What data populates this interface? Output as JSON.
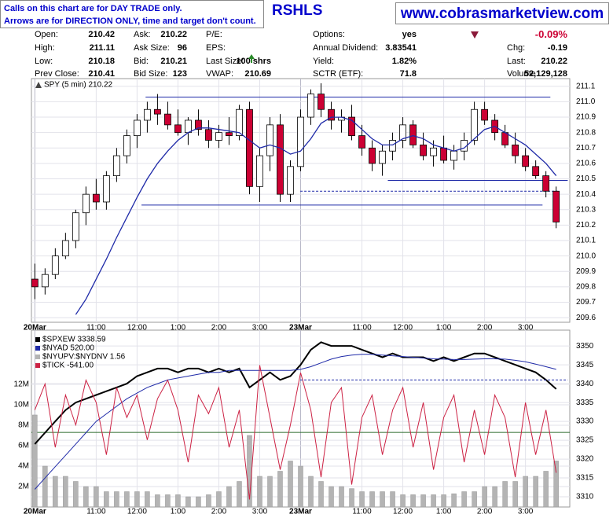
{
  "header": {
    "notes": [
      "Calls on this chart are for DAY TRADE only.",
      "Arrows are for DIRECTION ONLY, time and target don't count."
    ],
    "symbol": "RSHLS",
    "site": "www.cobrasmarketview.com",
    "quote": [
      [
        {
          "label": "Open:",
          "value": "210.42"
        },
        {
          "label": "Ask:",
          "value": "210.22"
        },
        {
          "label": "P/E:"
        },
        {
          "label": "Options:",
          "value": "yes"
        },
        {
          "value": "-0.09%"
        }
      ],
      [
        {
          "label": "High:",
          "value": "211.11"
        },
        {
          "label": "Ask Size:",
          "value": "96"
        },
        {
          "label": "EPS:"
        },
        {
          "label": "Annual Dividend:",
          "value": "3.83541"
        },
        {
          "label": "Chg:",
          "value": "-0.19"
        }
      ],
      [
        {
          "label": "Low:",
          "value": "210.18"
        },
        {
          "label": "Bid:",
          "value": "210.21"
        },
        {
          "label": "Last Size:",
          "value": "100 shrs"
        },
        {
          "label": "Yield:",
          "value": "1.82%"
        },
        {
          "label": "Last:",
          "value": "210.22"
        }
      ],
      [
        {
          "label": "Prev Close:",
          "value": "210.41"
        },
        {
          "label": "Bid Size:",
          "value": "123"
        },
        {
          "label": "VWAP:",
          "value": "210.69"
        },
        {
          "label": "SCTR (ETF):",
          "value": "71.8"
        },
        {
          "label": "Volume:",
          "value": "52,129,128"
        }
      ]
    ]
  },
  "chart_data": [
    {
      "type": "candlestick",
      "title": "SPY (5 min) 210.22",
      "xlim": [
        -1,
        157
      ],
      "ylim": [
        209.57,
        211.15
      ],
      "grid": true,
      "up_color": "#ffffff",
      "down_color": "#cc0033",
      "xticks": [
        {
          "value": 0,
          "label": "20Mar"
        },
        {
          "value": 18,
          "label": "11:00"
        },
        {
          "value": 30,
          "label": "12:00"
        },
        {
          "value": 42,
          "label": "1:00"
        },
        {
          "value": 54,
          "label": "2:00"
        },
        {
          "value": 66,
          "label": "3:00"
        },
        {
          "value": 78,
          "label": "23Mar"
        },
        {
          "value": 96,
          "label": "11:00"
        },
        {
          "value": 108,
          "label": "12:00"
        },
        {
          "value": 120,
          "label": "1:00"
        },
        {
          "value": 132,
          "label": "2:00"
        },
        {
          "value": 144,
          "label": "3:00"
        }
      ],
      "yticks": [
        209.6,
        209.7,
        209.8,
        209.9,
        {
          "value": 210,
          "label": "210.0"
        },
        210.1,
        210.2,
        210.3,
        210.4,
        210.5,
        210.6,
        210.7,
        210.8,
        210.9,
        {
          "value": 211,
          "label": "211.0"
        },
        211.1
      ],
      "x": [
        0,
        3,
        6,
        9,
        12,
        15,
        18,
        21,
        24,
        27,
        30,
        33,
        36,
        39,
        42,
        45,
        48,
        51,
        54,
        57,
        60,
        63,
        66,
        69,
        72,
        75,
        78,
        81,
        84,
        87,
        90,
        93,
        96,
        99,
        102,
        105,
        108,
        111,
        114,
        117,
        120,
        123,
        126,
        129,
        132,
        135,
        138,
        141,
        144,
        147,
        150,
        153
      ],
      "open": [
        209.85,
        209.8,
        209.88,
        210.0,
        210.1,
        210.28,
        210.4,
        210.35,
        210.52,
        210.65,
        210.78,
        210.88,
        210.95,
        210.92,
        210.85,
        210.8,
        210.88,
        210.82,
        210.75,
        210.8,
        210.78,
        210.95,
        210.45,
        210.65,
        210.85,
        210.4,
        210.58,
        210.9,
        211.05,
        210.95,
        210.88,
        210.9,
        210.78,
        210.7,
        210.6,
        210.68,
        210.75,
        210.85,
        210.72,
        210.65,
        210.7,
        210.62,
        210.68,
        210.75,
        210.95,
        210.88,
        210.8,
        210.72,
        210.65,
        210.58,
        210.52,
        210.42
      ],
      "high": [
        209.95,
        209.92,
        210.05,
        210.15,
        210.3,
        210.45,
        210.5,
        210.55,
        210.7,
        210.82,
        210.92,
        211.0,
        211.05,
        211.0,
        210.95,
        210.9,
        210.95,
        210.88,
        210.85,
        210.9,
        210.98,
        211.0,
        210.7,
        210.9,
        210.92,
        210.62,
        210.95,
        211.08,
        211.12,
        211.0,
        210.95,
        210.98,
        210.85,
        210.75,
        210.72,
        210.8,
        210.9,
        210.88,
        210.8,
        210.75,
        210.78,
        210.72,
        210.8,
        211.0,
        211.0,
        210.92,
        210.85,
        210.8,
        210.7,
        210.62,
        210.55,
        210.45
      ],
      "low": [
        209.72,
        209.75,
        209.85,
        209.98,
        210.05,
        210.2,
        210.3,
        210.3,
        210.48,
        210.6,
        210.7,
        210.8,
        210.85,
        210.82,
        210.78,
        210.72,
        210.78,
        210.7,
        210.7,
        210.72,
        210.75,
        210.4,
        210.35,
        210.55,
        210.35,
        210.35,
        210.55,
        210.85,
        210.9,
        210.82,
        210.8,
        210.75,
        210.65,
        210.55,
        210.52,
        210.62,
        210.7,
        210.7,
        210.62,
        210.58,
        210.6,
        210.56,
        210.62,
        210.72,
        210.85,
        210.75,
        210.7,
        210.6,
        210.55,
        210.5,
        210.38,
        210.18
      ],
      "close": [
        209.8,
        209.88,
        210.0,
        210.1,
        210.28,
        210.4,
        210.35,
        210.52,
        210.65,
        210.78,
        210.88,
        210.95,
        210.92,
        210.85,
        210.8,
        210.88,
        210.82,
        210.75,
        210.8,
        210.78,
        210.95,
        210.45,
        210.65,
        210.85,
        210.4,
        210.58,
        210.9,
        211.05,
        210.95,
        210.88,
        210.9,
        210.78,
        210.7,
        210.6,
        210.68,
        210.75,
        210.85,
        210.72,
        210.65,
        210.7,
        210.62,
        210.68,
        210.75,
        210.95,
        210.88,
        210.8,
        210.72,
        210.65,
        210.58,
        210.52,
        210.42,
        210.22
      ],
      "ma": {
        "color": "#1f2aa8",
        "values": [
          null,
          null,
          null,
          null,
          209.62,
          209.72,
          209.85,
          209.98,
          210.12,
          210.25,
          210.38,
          210.5,
          210.6,
          210.68,
          210.75,
          210.8,
          210.83,
          210.83,
          210.82,
          210.81,
          210.8,
          210.75,
          210.7,
          210.72,
          210.7,
          210.66,
          210.68,
          210.76,
          210.86,
          210.9,
          210.9,
          210.88,
          210.82,
          210.76,
          210.72,
          210.72,
          210.76,
          210.78,
          210.76,
          210.72,
          210.7,
          210.68,
          210.7,
          210.76,
          210.82,
          210.84,
          210.8,
          210.76,
          210.72,
          210.66,
          210.6,
          210.52
        ]
      },
      "levels": [
        {
          "y": 211.03,
          "x": [
            32.5,
            151.3
          ],
          "dashed": false,
          "color": "#1f2aa8"
        },
        {
          "y": 210.49,
          "x": [
            103.6,
            156.4
          ],
          "dashed": false,
          "color": "#1f2aa8"
        },
        {
          "y": 210.42,
          "x": [
            77.9,
            153.4
          ],
          "dashed": true,
          "color": "#1f2aa8"
        },
        {
          "y": 210.33,
          "x": [
            31.3,
            149
          ],
          "dashed": false,
          "color": "#1f2aa8"
        }
      ]
    },
    {
      "type": "combo",
      "xlim": [
        -1,
        157
      ],
      "ylim": [
        0,
        17300000
      ],
      "y2lim": [
        3307.3,
        3354.2
      ],
      "y3lim": [
        -1000,
        1370
      ],
      "grid": true,
      "xticks": [
        {
          "value": 0,
          "label": "20Mar"
        },
        {
          "value": 18,
          "label": "11:00"
        },
        {
          "value": 30,
          "label": "12:00"
        },
        {
          "value": 42,
          "label": "1:00"
        },
        {
          "value": 54,
          "label": "2:00"
        },
        {
          "value": 66,
          "label": "3:00"
        },
        {
          "value": 78,
          "label": "23Mar"
        },
        {
          "value": 96,
          "label": "11:00"
        },
        {
          "value": 108,
          "label": "12:00"
        },
        {
          "value": 120,
          "label": "1:00"
        },
        {
          "value": 132,
          "label": "2:00"
        },
        {
          "value": 144,
          "label": "3:00"
        }
      ],
      "yticks": [
        {
          "value": 2000000,
          "label": "2M"
        },
        {
          "value": 4000000,
          "label": "4M"
        },
        {
          "value": 6000000,
          "label": "6M"
        },
        {
          "value": 8000000,
          "label": "8M"
        },
        {
          "value": 10000000,
          "label": "10M"
        },
        {
          "value": 12000000,
          "label": "12M"
        }
      ],
      "y2ticks": [
        3310,
        3315,
        3320,
        3325,
        3330,
        3335,
        3340,
        3345,
        3350
      ],
      "x": [
        0,
        3,
        6,
        9,
        12,
        15,
        18,
        21,
        24,
        27,
        30,
        33,
        36,
        39,
        42,
        45,
        48,
        51,
        54,
        57,
        60,
        63,
        66,
        69,
        72,
        75,
        78,
        81,
        84,
        87,
        90,
        93,
        96,
        99,
        102,
        105,
        108,
        111,
        114,
        117,
        120,
        123,
        126,
        129,
        132,
        135,
        138,
        141,
        144,
        147,
        150,
        153
      ],
      "levels": [
        {
          "y": 3341,
          "x": [
            77.9,
            156.4
          ],
          "dashed": true,
          "color": "#1f2aa8"
        }
      ],
      "series": [
        {
          "name": "$SPXEW 3338.59",
          "type": "line",
          "axis": "y2",
          "color": "#000000",
          "width": 2,
          "values": [
            3324,
            3327,
            3330,
            3333,
            3335,
            3336,
            3337,
            3338,
            3339,
            3340,
            3342,
            3343,
            3344,
            3344,
            3343,
            3344,
            3344,
            3343,
            3344,
            3343,
            3344,
            3339,
            3341,
            3343,
            3341,
            3342,
            3345,
            3349,
            3351,
            3350,
            3350,
            3350,
            3349,
            3348,
            3347,
            3348,
            3347,
            3347,
            3347,
            3346,
            3347,
            3346,
            3347,
            3348,
            3348,
            3347,
            3346,
            3345,
            3344,
            3343,
            3341,
            3338.59
          ]
        },
        {
          "name": "$NYAD 520.00",
          "type": "line",
          "axis": "y2",
          "color": "#1f2aa8",
          "width": 1,
          "values": [
            3312,
            3315,
            3318,
            3321,
            3324,
            3327,
            3330,
            3332,
            3334,
            3336,
            3337.5,
            3339,
            3340,
            3341,
            3341.5,
            3342,
            3342.5,
            3343,
            3343,
            3343.5,
            3343.5,
            3343.5,
            3343.5,
            3343.5,
            3343.5,
            3343.5,
            3343.8,
            3344.5,
            3345.5,
            3346.5,
            3347.2,
            3347.6,
            3347.8,
            3347.8,
            3347.6,
            3347.4,
            3347.2,
            3347,
            3346.8,
            3346.6,
            3346.5,
            3346.4,
            3346.4,
            3346.5,
            3346.6,
            3346.6,
            3346.5,
            3346.2,
            3345.8,
            3345.2,
            3344.5,
            3343.8
          ]
        },
        {
          "name": "$NYUPV:$NYDNV 1.56",
          "type": "bar",
          "axis": "y",
          "color": "#b4b4b4",
          "values": [
            9000000,
            4000000,
            3000000,
            3000000,
            2500000,
            2000000,
            2000000,
            1500000,
            1500000,
            1500000,
            1500000,
            1500000,
            1200000,
            1200000,
            1200000,
            1000000,
            1000000,
            1200000,
            1500000,
            2000000,
            2500000,
            7000000,
            3000000,
            3000000,
            3500000,
            4500000,
            4000000,
            3000000,
            2500000,
            2000000,
            2000000,
            1800000,
            1500000,
            1500000,
            1500000,
            1500000,
            1200000,
            1200000,
            1200000,
            1200000,
            1200000,
            1300000,
            1500000,
            1500000,
            2000000,
            2000000,
            2500000,
            2500000,
            3000000,
            3000000,
            3500000,
            4500000
          ]
        },
        {
          "name": "$TICK -541.00",
          "type": "line",
          "axis": "y3",
          "color": "#cc2244",
          "width": 1,
          "values": [
            300,
            650,
            -200,
            500,
            100,
            700,
            400,
            -300,
            600,
            200,
            500,
            -100,
            450,
            700,
            300,
            -400,
            500,
            250,
            600,
            -200,
            300,
            -900,
            900,
            200,
            -500,
            100,
            800,
            300,
            -600,
            400,
            600,
            -700,
            200,
            500,
            -300,
            300,
            600,
            -200,
            400,
            -500,
            200,
            500,
            -400,
            300,
            -300,
            500,
            200,
            -600,
            400,
            -300,
            300,
            -541
          ]
        }
      ]
    }
  ]
}
